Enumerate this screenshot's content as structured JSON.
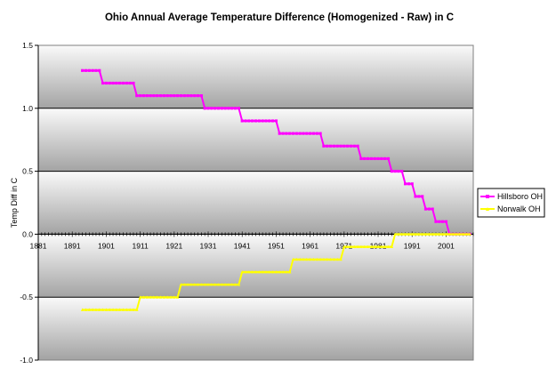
{
  "chart_data": {
    "type": "line",
    "title": "Ohio Annual Average Temperature Difference (Homogenized - Raw) in C",
    "xlabel": "",
    "ylabel": "Temp Diff in C",
    "xlim": [
      1881,
      2009
    ],
    "ylim": [
      -1.0,
      1.5
    ],
    "x_ticks": [
      1881,
      1891,
      1901,
      1911,
      1921,
      1931,
      1941,
      1951,
      1961,
      1971,
      1981,
      1991,
      2001
    ],
    "y_ticks": [
      {
        "value": 1.5,
        "label": "1.5"
      },
      {
        "value": 1.0,
        "label": "1.0"
      },
      {
        "value": 0.5,
        "label": "0.5"
      },
      {
        "value": 0.0,
        "label": "0.0"
      },
      {
        "value": -0.5,
        "label": "-0.5"
      },
      {
        "value": -1.0,
        "label": "-1.0"
      }
    ],
    "gridlines": true,
    "legend_position": "right",
    "series": [
      {
        "name": "Hillsboro OH",
        "color": "#ff00ff",
        "marker": "square",
        "steps": [
          {
            "from": 1894,
            "to": 1899,
            "y": 1.3
          },
          {
            "from": 1900,
            "to": 1909,
            "y": 1.2
          },
          {
            "from": 1910,
            "to": 1919,
            "y": 1.1
          },
          {
            "from": 1920,
            "to": 1929,
            "y": 1.1
          },
          {
            "from": 1930,
            "to": 1940,
            "y": 1.0
          },
          {
            "from": 1941,
            "to": 1951,
            "y": 0.9
          },
          {
            "from": 1952,
            "to": 1964,
            "y": 0.8
          },
          {
            "from": 1965,
            "to": 1975,
            "y": 0.7
          },
          {
            "from": 1976,
            "to": 1984,
            "y": 0.6
          },
          {
            "from": 1985,
            "to": 1988,
            "y": 0.5
          },
          {
            "from": 1989,
            "to": 1991,
            "y": 0.4
          },
          {
            "from": 1992,
            "to": 1994,
            "y": 0.3
          },
          {
            "from": 1995,
            "to": 1997,
            "y": 0.2
          },
          {
            "from": 1998,
            "to": 2001,
            "y": 0.1
          },
          {
            "from": 2002,
            "to": 2008,
            "y": 0.0
          }
        ]
      },
      {
        "name": "Norwalk OH",
        "color": "#ffff00",
        "marker": "triangle",
        "steps": [
          {
            "from": 1894,
            "to": 1910,
            "y": -0.6
          },
          {
            "from": 1911,
            "to": 1922,
            "y": -0.5
          },
          {
            "from": 1923,
            "to": 1940,
            "y": -0.4
          },
          {
            "from": 1941,
            "to": 1955,
            "y": -0.3
          },
          {
            "from": 1956,
            "to": 1970,
            "y": -0.2
          },
          {
            "from": 1971,
            "to": 1985,
            "y": -0.1
          },
          {
            "from": 1986,
            "to": 2008,
            "y": 0.0
          }
        ]
      }
    ]
  }
}
